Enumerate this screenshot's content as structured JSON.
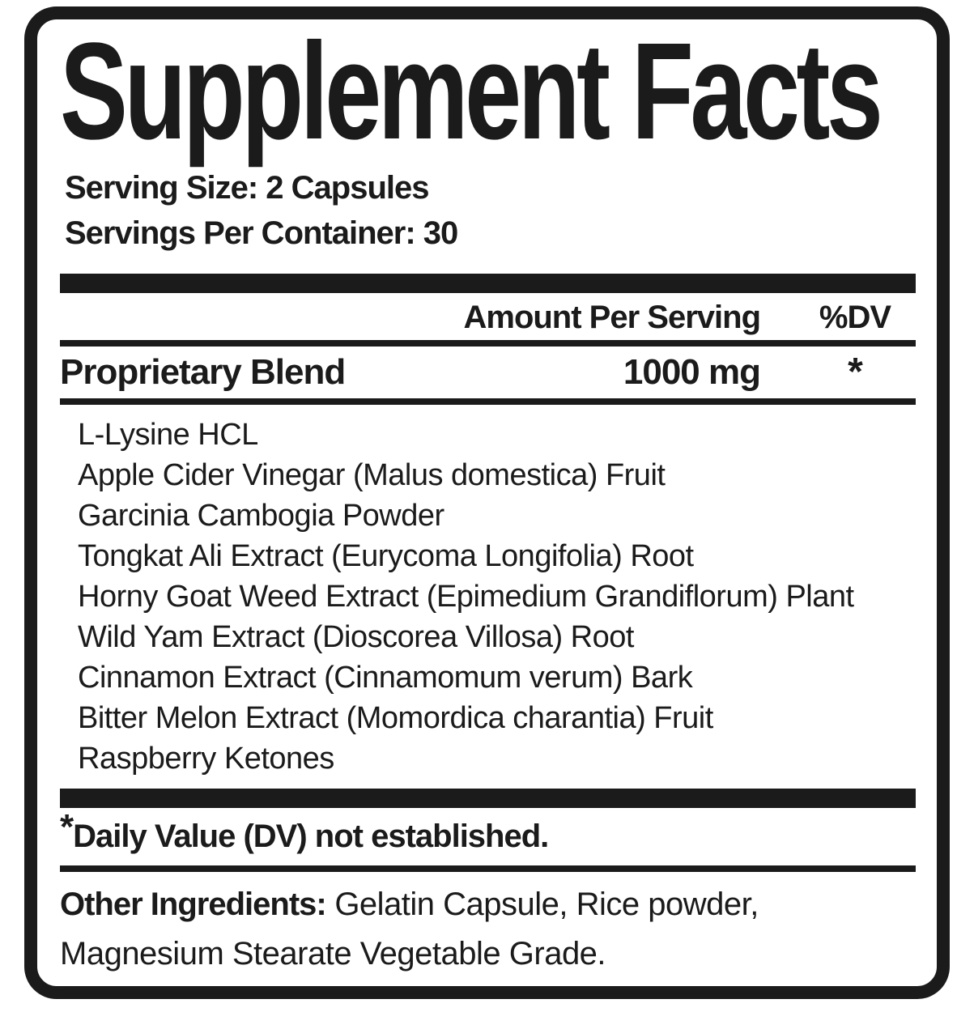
{
  "label": {
    "title": "Supplement Facts",
    "serving_size": "Serving Size: 2 Capsules",
    "servings_per_container": "Servings Per Container: 30",
    "columns": {
      "amount": "Amount Per Serving",
      "dv": "%DV"
    },
    "blend": {
      "name": "Proprietary Blend",
      "amount": "1000 mg",
      "dv": "*"
    },
    "ingredients": [
      "L-Lysine HCL",
      "Apple Cider Vinegar (Malus domestica) Fruit",
      "Garcinia Cambogia Powder",
      "Tongkat Ali Extract (Eurycoma Longifolia) Root",
      "Horny Goat Weed Extract (Epimedium Grandiflorum) Plant",
      "Wild Yam Extract (Dioscorea Villosa) Root",
      "Cinnamon Extract (Cinnamomum verum) Bark",
      "Bitter Melon Extract (Momordica charantia) Fruit",
      "Raspberry Ketones"
    ],
    "footnote": {
      "symbol": "*",
      "text": "Daily Value (DV) not established."
    },
    "other_ingredients": {
      "label": "Other Ingredients:",
      "text": " Gelatin Capsule, Rice powder, Magnesium Stearate Vegetable Grade."
    },
    "colors": {
      "ink": "#1b1b1b",
      "background": "#ffffff"
    }
  }
}
